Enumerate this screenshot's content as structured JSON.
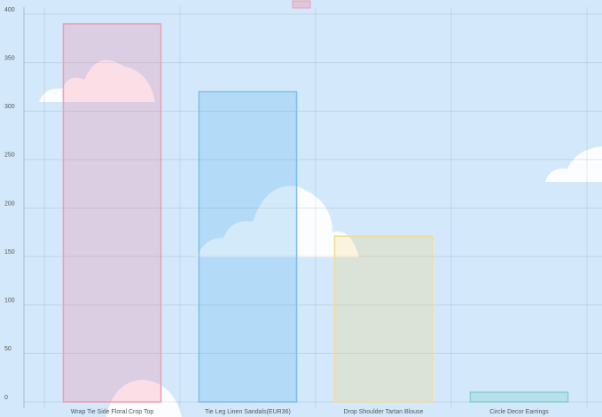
{
  "chart_data": {
    "type": "bar",
    "categories": [
      "Wrap Tie Side Floral Crop Top",
      "Tie Leg Linen Sandals(EUR36)",
      "Drop Shoulder Tartan Blouse",
      "Circle Decor Earrings"
    ],
    "values": [
      390,
      320,
      171,
      10
    ],
    "colors": [
      "rgba(255,99,132,0.2)",
      "rgba(54,162,235,0.2)",
      "rgba(255,206,86,0.2)",
      "rgba(75,192,192,0.2)"
    ],
    "border_colors": [
      "#f29bb0",
      "#7fbde9",
      "#f0dc96",
      "#86cfc9"
    ],
    "ylim": [
      0,
      400
    ],
    "yticks": [
      0,
      50,
      100,
      150,
      200,
      250,
      300,
      350,
      400
    ],
    "grid": true
  }
}
